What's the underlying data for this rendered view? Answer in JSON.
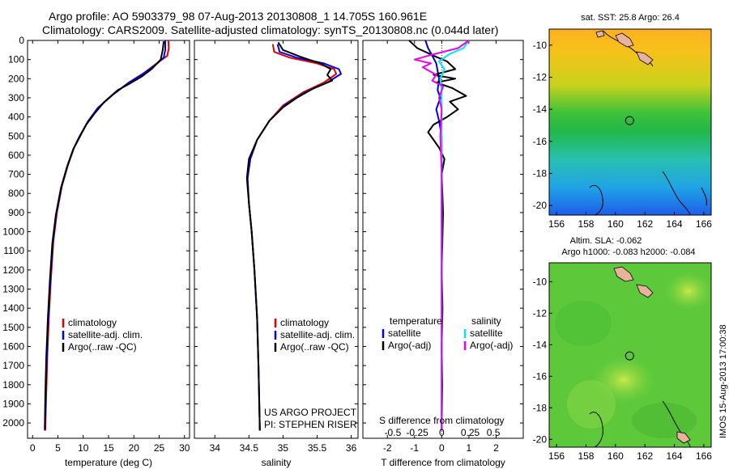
{
  "header": {
    "title_line1": "Argo profile: AO 5903379_98 07-Aug-2013 20130808_1 14.705S 160.961E",
    "title_line2": "Climatology: CARS2009. Satellite-adjusted climatology: synTS_20130808.nc (0.044d later)"
  },
  "colors": {
    "climatology": "#e00000",
    "satellite": "#0000e0",
    "argo": "#000000",
    "satellite_salinity": "#00e5ee",
    "argo_salinity_adj": "#ee00ee"
  },
  "chart_data": [
    {
      "type": "line",
      "panel": "temperature",
      "xlabel": "temperature (deg C)",
      "ylabel": "",
      "xlim": [
        -1,
        31
      ],
      "ylim": [
        2080,
        0
      ],
      "xticks": [
        0,
        5,
        10,
        15,
        20,
        25,
        30
      ],
      "yticks": [
        0,
        100,
        200,
        300,
        400,
        500,
        600,
        700,
        800,
        900,
        1000,
        1100,
        1200,
        1300,
        1400,
        1500,
        1600,
        1700,
        1800,
        1900,
        2000
      ],
      "legend": [
        "climatology",
        "satellite-adj. clim.",
        "Argo(..raw -QC)"
      ],
      "series": [
        {
          "name": "climatology",
          "color_key": "climatology",
          "points": [
            [
              26.8,
              0
            ],
            [
              26.9,
              40
            ],
            [
              26.6,
              80
            ],
            [
              24.5,
              120
            ],
            [
              22,
              170
            ],
            [
              19,
              220
            ],
            [
              16,
              280
            ],
            [
              13,
              350
            ],
            [
              11,
              420
            ],
            [
              9.3,
              500
            ],
            [
              8.2,
              560
            ],
            [
              7,
              650
            ],
            [
              5.8,
              760
            ],
            [
              4.8,
              900
            ],
            [
              4.1,
              1050
            ],
            [
              3.6,
              1250
            ],
            [
              3.2,
              1450
            ],
            [
              2.9,
              1650
            ],
            [
              2.7,
              1850
            ],
            [
              2.5,
              2040
            ]
          ]
        },
        {
          "name": "satellite-adj. clim.",
          "color_key": "satellite",
          "points": [
            [
              26.2,
              0
            ],
            [
              26.2,
              50
            ],
            [
              25.9,
              90
            ],
            [
              24.2,
              130
            ],
            [
              21.8,
              175
            ],
            [
              18.8,
              225
            ],
            [
              15.8,
              285
            ],
            [
              12.8,
              355
            ],
            [
              10.9,
              425
            ],
            [
              9.2,
              505
            ],
            [
              8.1,
              565
            ],
            [
              6.9,
              655
            ],
            [
              5.7,
              765
            ],
            [
              4.7,
              905
            ],
            [
              4.0,
              1055
            ],
            [
              3.5,
              1255
            ],
            [
              3.1,
              1455
            ],
            [
              2.8,
              1655
            ],
            [
              2.6,
              1855
            ],
            [
              2.4,
              2040
            ]
          ]
        },
        {
          "name": "Argo(..raw -QC)",
          "color_key": "argo",
          "points": [
            [
              25.9,
              5
            ],
            [
              25.7,
              50
            ],
            [
              25.3,
              100
            ],
            [
              23.5,
              150
            ],
            [
              21.5,
              190
            ],
            [
              18.9,
              230
            ],
            [
              16.8,
              260
            ],
            [
              14.2,
              320
            ],
            [
              12.3,
              380
            ],
            [
              10.6,
              440
            ],
            [
              9.4,
              500
            ],
            [
              8.0,
              570
            ],
            [
              6.8,
              660
            ],
            [
              5.6,
              770
            ],
            [
              4.6,
              910
            ],
            [
              3.9,
              1060
            ],
            [
              3.4,
              1260
            ],
            [
              3.0,
              1460
            ],
            [
              2.7,
              1660
            ],
            [
              2.5,
              1860
            ],
            [
              2.4,
              2030
            ]
          ]
        }
      ]
    },
    {
      "type": "line",
      "panel": "salinity",
      "xlabel": "salinity",
      "xlim": [
        33.7,
        36.1
      ],
      "ylim": [
        2080,
        0
      ],
      "xticks": [
        34,
        34.5,
        35,
        35.5,
        36
      ],
      "legend": [
        "climatology",
        "satellite-adj. clim.",
        "Argo(..raw -QC)"
      ],
      "annotation": [
        "US ARGO PROJECT",
        "PI: STEPHEN RISER"
      ],
      "series": [
        {
          "name": "climatology",
          "color_key": "climatology",
          "points": [
            [
              34.85,
              20
            ],
            [
              34.87,
              60
            ],
            [
              35.1,
              90
            ],
            [
              35.5,
              120
            ],
            [
              35.75,
              150
            ],
            [
              35.78,
              175
            ],
            [
              35.6,
              220
            ],
            [
              35.3,
              270
            ],
            [
              35.0,
              340
            ],
            [
              34.8,
              420
            ],
            [
              34.62,
              520
            ],
            [
              34.52,
              620
            ],
            [
              34.48,
              720
            ],
            [
              34.5,
              850
            ],
            [
              34.54,
              1000
            ],
            [
              34.58,
              1200
            ],
            [
              34.62,
              1450
            ],
            [
              34.64,
              1700
            ],
            [
              34.66,
              2040
            ]
          ]
        },
        {
          "name": "satellite-adj. clim.",
          "color_key": "satellite",
          "points": [
            [
              34.92,
              20
            ],
            [
              34.95,
              60
            ],
            [
              35.2,
              90
            ],
            [
              35.6,
              120
            ],
            [
              35.82,
              150
            ],
            [
              35.85,
              175
            ],
            [
              35.65,
              220
            ],
            [
              35.33,
              270
            ],
            [
              35.02,
              340
            ],
            [
              34.8,
              420
            ],
            [
              34.62,
              520
            ],
            [
              34.52,
              620
            ],
            [
              34.48,
              720
            ],
            [
              34.5,
              850
            ],
            [
              34.54,
              1000
            ],
            [
              34.58,
              1200
            ],
            [
              34.62,
              1450
            ],
            [
              34.64,
              1700
            ],
            [
              34.66,
              2040
            ]
          ]
        },
        {
          "name": "Argo(..raw -QC)",
          "color_key": "argo",
          "points": [
            [
              34.93,
              10
            ],
            [
              35.0,
              50
            ],
            [
              35.25,
              85
            ],
            [
              35.55,
              120
            ],
            [
              35.7,
              150
            ],
            [
              35.65,
              180
            ],
            [
              35.72,
              210
            ],
            [
              35.45,
              250
            ],
            [
              35.2,
              300
            ],
            [
              35.0,
              350
            ],
            [
              34.8,
              420
            ],
            [
              34.62,
              520
            ],
            [
              34.5,
              620
            ],
            [
              34.47,
              720
            ],
            [
              34.5,
              850
            ],
            [
              34.54,
              1000
            ],
            [
              34.58,
              1200
            ],
            [
              34.62,
              1450
            ],
            [
              34.64,
              1700
            ],
            [
              34.66,
              2040
            ]
          ]
        }
      ]
    },
    {
      "type": "line",
      "panel": "differences",
      "xlabel": "T difference from climatology",
      "xlabel_top": "S difference from climatology",
      "xlim": [
        -2.9,
        3.0
      ],
      "ylim": [
        2080,
        0
      ],
      "xticks": [
        -2,
        -1,
        0,
        1,
        2
      ],
      "s_ticks": [
        {
          "label": "-0.5",
          "x": -1.8
        },
        {
          "label": "-0.25",
          "x": -0.9
        },
        {
          "label": "0",
          "x": 0
        },
        {
          "label": "0.25",
          "x": 1.05
        },
        {
          "label": "0.5",
          "x": 1.9
        }
      ],
      "legend_headers": [
        "temperature",
        "salinity"
      ],
      "legend": [
        "satellite",
        "Argo(-adj)",
        "satellite",
        "Argo(-adj)"
      ],
      "series": [
        {
          "name": "satellite",
          "color_key": "satellite",
          "points": [
            [
              -0.6,
              0
            ],
            [
              -0.5,
              40
            ],
            [
              -0.35,
              80
            ],
            [
              -0.2,
              120
            ],
            [
              -0.15,
              160
            ],
            [
              -0.1,
              200
            ],
            [
              -0.15,
              260
            ],
            [
              -0.05,
              300
            ],
            [
              -0.2,
              360
            ],
            [
              -0.1,
              420
            ],
            [
              0,
              500
            ],
            [
              0,
              2040
            ]
          ]
        },
        {
          "name": "Argo(-adj)",
          "color_key": "argo",
          "points": [
            [
              -1.2,
              0
            ],
            [
              -0.9,
              40
            ],
            [
              -0.3,
              80
            ],
            [
              0.2,
              110
            ],
            [
              0.5,
              150
            ],
            [
              -0.3,
              180
            ],
            [
              0.5,
              200
            ],
            [
              -0.2,
              220
            ],
            [
              0.4,
              250
            ],
            [
              0.9,
              290
            ],
            [
              0.3,
              320
            ],
            [
              0.6,
              360
            ],
            [
              0.2,
              400
            ],
            [
              -0.3,
              440
            ],
            [
              -0.5,
              480
            ],
            [
              -0.3,
              520
            ],
            [
              -0.1,
              560
            ],
            [
              0.1,
              620
            ],
            [
              0,
              700
            ],
            [
              0.05,
              900
            ],
            [
              0,
              1200
            ],
            [
              0.03,
              1400
            ],
            [
              0,
              1600
            ],
            [
              0.02,
              1800
            ],
            [
              0,
              2040
            ]
          ]
        },
        {
          "name": "satellite",
          "color_key": "satellite_salinity",
          "points": [
            [
              1.0,
              0
            ],
            [
              0.8,
              40
            ],
            [
              0.3,
              70
            ],
            [
              -0.1,
              110
            ],
            [
              0.1,
              150
            ],
            [
              -0.05,
              200
            ],
            [
              0,
              260
            ],
            [
              0,
              2040
            ]
          ]
        },
        {
          "name": "Argo(-adj)",
          "color_key": "argo_salinity_adj",
          "points": [
            [
              1.0,
              0
            ],
            [
              0.6,
              40
            ],
            [
              -0.5,
              80
            ],
            [
              -1.0,
              100
            ],
            [
              -0.4,
              120
            ],
            [
              -0.7,
              140
            ],
            [
              -0.2,
              180
            ],
            [
              -0.35,
              210
            ],
            [
              0.05,
              240
            ],
            [
              -0.1,
              300
            ],
            [
              0,
              360
            ],
            [
              -0.05,
              500
            ],
            [
              0,
              700
            ],
            [
              0,
              2040
            ]
          ]
        }
      ]
    },
    {
      "type": "heatmap",
      "panel": "map_sst",
      "title": "sat. SST: 25.8 Argo: 26.4",
      "xlim": [
        155.5,
        166.5
      ],
      "ylim": [
        -20.6,
        -9.0
      ],
      "xticks": [
        156,
        158,
        160,
        162,
        164,
        166
      ],
      "yticks": [
        -10,
        -12,
        -14,
        -16,
        -18,
        -20
      ],
      "marker": {
        "lon": 160.961,
        "lat": -14.705
      }
    },
    {
      "type": "heatmap",
      "panel": "map_sla",
      "title": "Altim. SLA: -0.062",
      "subtitle": "Argo h1000: -0.083 h2000: -0.084",
      "xlim": [
        155.5,
        166.5
      ],
      "ylim": [
        -20.5,
        -8.8
      ],
      "xticks": [
        156,
        158,
        160,
        162,
        164,
        166
      ],
      "yticks": [
        -10,
        -12,
        -14,
        -16,
        -18,
        -20
      ],
      "marker": {
        "lon": 160.961,
        "lat": -14.705
      }
    }
  ],
  "footer": {
    "timestamp_vertical": "IMOS 15-Aug-2013 17:00:38"
  }
}
